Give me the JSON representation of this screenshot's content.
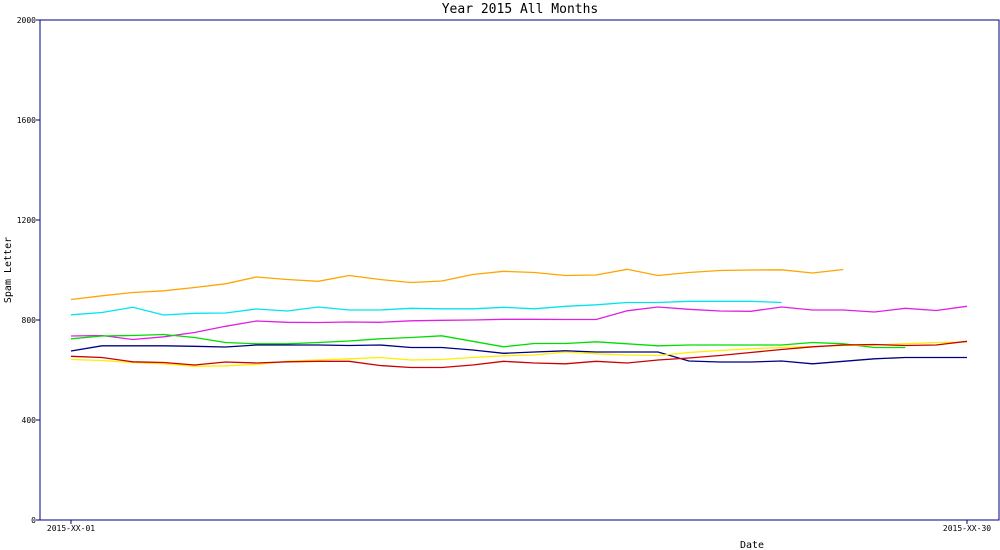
{
  "chart_data": {
    "type": "line",
    "title": "Year 2015 All Months",
    "xlabel": "Date",
    "ylabel": "Spam Letter",
    "ylim": [
      0,
      2000
    ],
    "yticks": [
      0,
      400,
      800,
      1200,
      1600,
      2000
    ],
    "xlim": [
      1,
      30
    ],
    "xtick_labels": [
      {
        "x": 1,
        "label": "2015-XX-01"
      },
      {
        "x": 30,
        "label": "2015-XX-30"
      }
    ],
    "grid": false,
    "legend": "none",
    "series": [
      {
        "color": "#ffa500",
        "x": [
          1,
          2,
          3,
          4,
          5,
          6,
          7,
          8,
          9,
          10,
          11,
          12,
          13,
          14,
          15,
          16,
          17,
          18,
          19,
          20,
          21,
          22,
          23,
          24,
          25,
          26
        ],
        "values": [
          882,
          897,
          910,
          917,
          930,
          945,
          972,
          962,
          955,
          978,
          962,
          950,
          956,
          982,
          995,
          990,
          978,
          980,
          1003,
          978,
          990,
          998,
          1000,
          1001,
          988,
          1002
        ]
      },
      {
        "color": "#00e5ee",
        "x": [
          1,
          2,
          3,
          4,
          5,
          6,
          7,
          8,
          9,
          10,
          11,
          12,
          13,
          14,
          15,
          16,
          17,
          18,
          19,
          20,
          21,
          22,
          23,
          24
        ],
        "values": [
          821,
          830,
          851,
          820,
          827,
          828,
          844,
          836,
          852,
          840,
          840,
          847,
          845,
          845,
          851,
          845,
          855,
          861,
          870,
          870,
          875,
          875,
          875,
          870
        ]
      },
      {
        "color": "#e020e0",
        "x": [
          1,
          2,
          3,
          4,
          5,
          6,
          7,
          8,
          9,
          10,
          11,
          12,
          13,
          14,
          15,
          16,
          17,
          18,
          19,
          20,
          21,
          22,
          23,
          24,
          25,
          26,
          27,
          28,
          29,
          30
        ],
        "values": [
          736,
          738,
          722,
          733,
          750,
          775,
          796,
          791,
          790,
          792,
          791,
          797,
          799,
          800,
          803,
          803,
          802,
          802,
          837,
          852,
          843,
          836,
          835,
          852,
          840,
          840,
          832,
          847,
          838,
          855
        ]
      },
      {
        "color": "#00dd00",
        "x": [
          1,
          2,
          3,
          4,
          5,
          6,
          7,
          8,
          9,
          10,
          11,
          12,
          13,
          14,
          15,
          16,
          17,
          18,
          19,
          20,
          21,
          22,
          23,
          24,
          25,
          26,
          27,
          28
        ],
        "values": [
          725,
          736,
          738,
          742,
          730,
          710,
          705,
          705,
          710,
          716,
          725,
          730,
          737,
          715,
          693,
          706,
          706,
          713,
          705,
          697,
          700,
          700,
          700,
          700,
          710,
          705,
          690,
          690
        ]
      },
      {
        "color": "#000080",
        "x": [
          1,
          2,
          3,
          4,
          5,
          6,
          7,
          8,
          9,
          10,
          11,
          12,
          13,
          14,
          15,
          16,
          17,
          18,
          19,
          20,
          21,
          22,
          23,
          24,
          25,
          26,
          27,
          28,
          29,
          30
        ],
        "values": [
          676,
          697,
          697,
          697,
          695,
          692,
          700,
          700,
          700,
          698,
          700,
          690,
          690,
          680,
          667,
          672,
          677,
          672,
          672,
          672,
          636,
          632,
          632,
          636,
          625,
          635,
          645,
          650,
          650,
          650
        ]
      },
      {
        "color": "#ffee00",
        "x": [
          1,
          2,
          3,
          4,
          5,
          6,
          7,
          8,
          9,
          10,
          11,
          12,
          13,
          14,
          15,
          16,
          17,
          18,
          19,
          20,
          21,
          22,
          23,
          24,
          25,
          26,
          27,
          28,
          29,
          30
        ],
        "values": [
          642,
          638,
          630,
          625,
          615,
          617,
          622,
          635,
          640,
          645,
          650,
          640,
          642,
          650,
          657,
          660,
          672,
          665,
          660,
          658,
          670,
          678,
          685,
          690,
          694,
          698,
          700,
          705,
          710,
          712
        ]
      },
      {
        "color": "#cc0000",
        "x": [
          1,
          2,
          3,
          4,
          5,
          6,
          7,
          8,
          9,
          10,
          11,
          12,
          13,
          14,
          15,
          16,
          17,
          18,
          19,
          20,
          21,
          22,
          23,
          24,
          25,
          26,
          27,
          28,
          29,
          30
        ],
        "values": [
          655,
          650,
          633,
          630,
          620,
          632,
          628,
          633,
          635,
          635,
          618,
          610,
          610,
          620,
          635,
          628,
          625,
          635,
          628,
          640,
          648,
          658,
          670,
          682,
          693,
          700,
          702,
          698,
          700,
          715
        ]
      }
    ]
  }
}
